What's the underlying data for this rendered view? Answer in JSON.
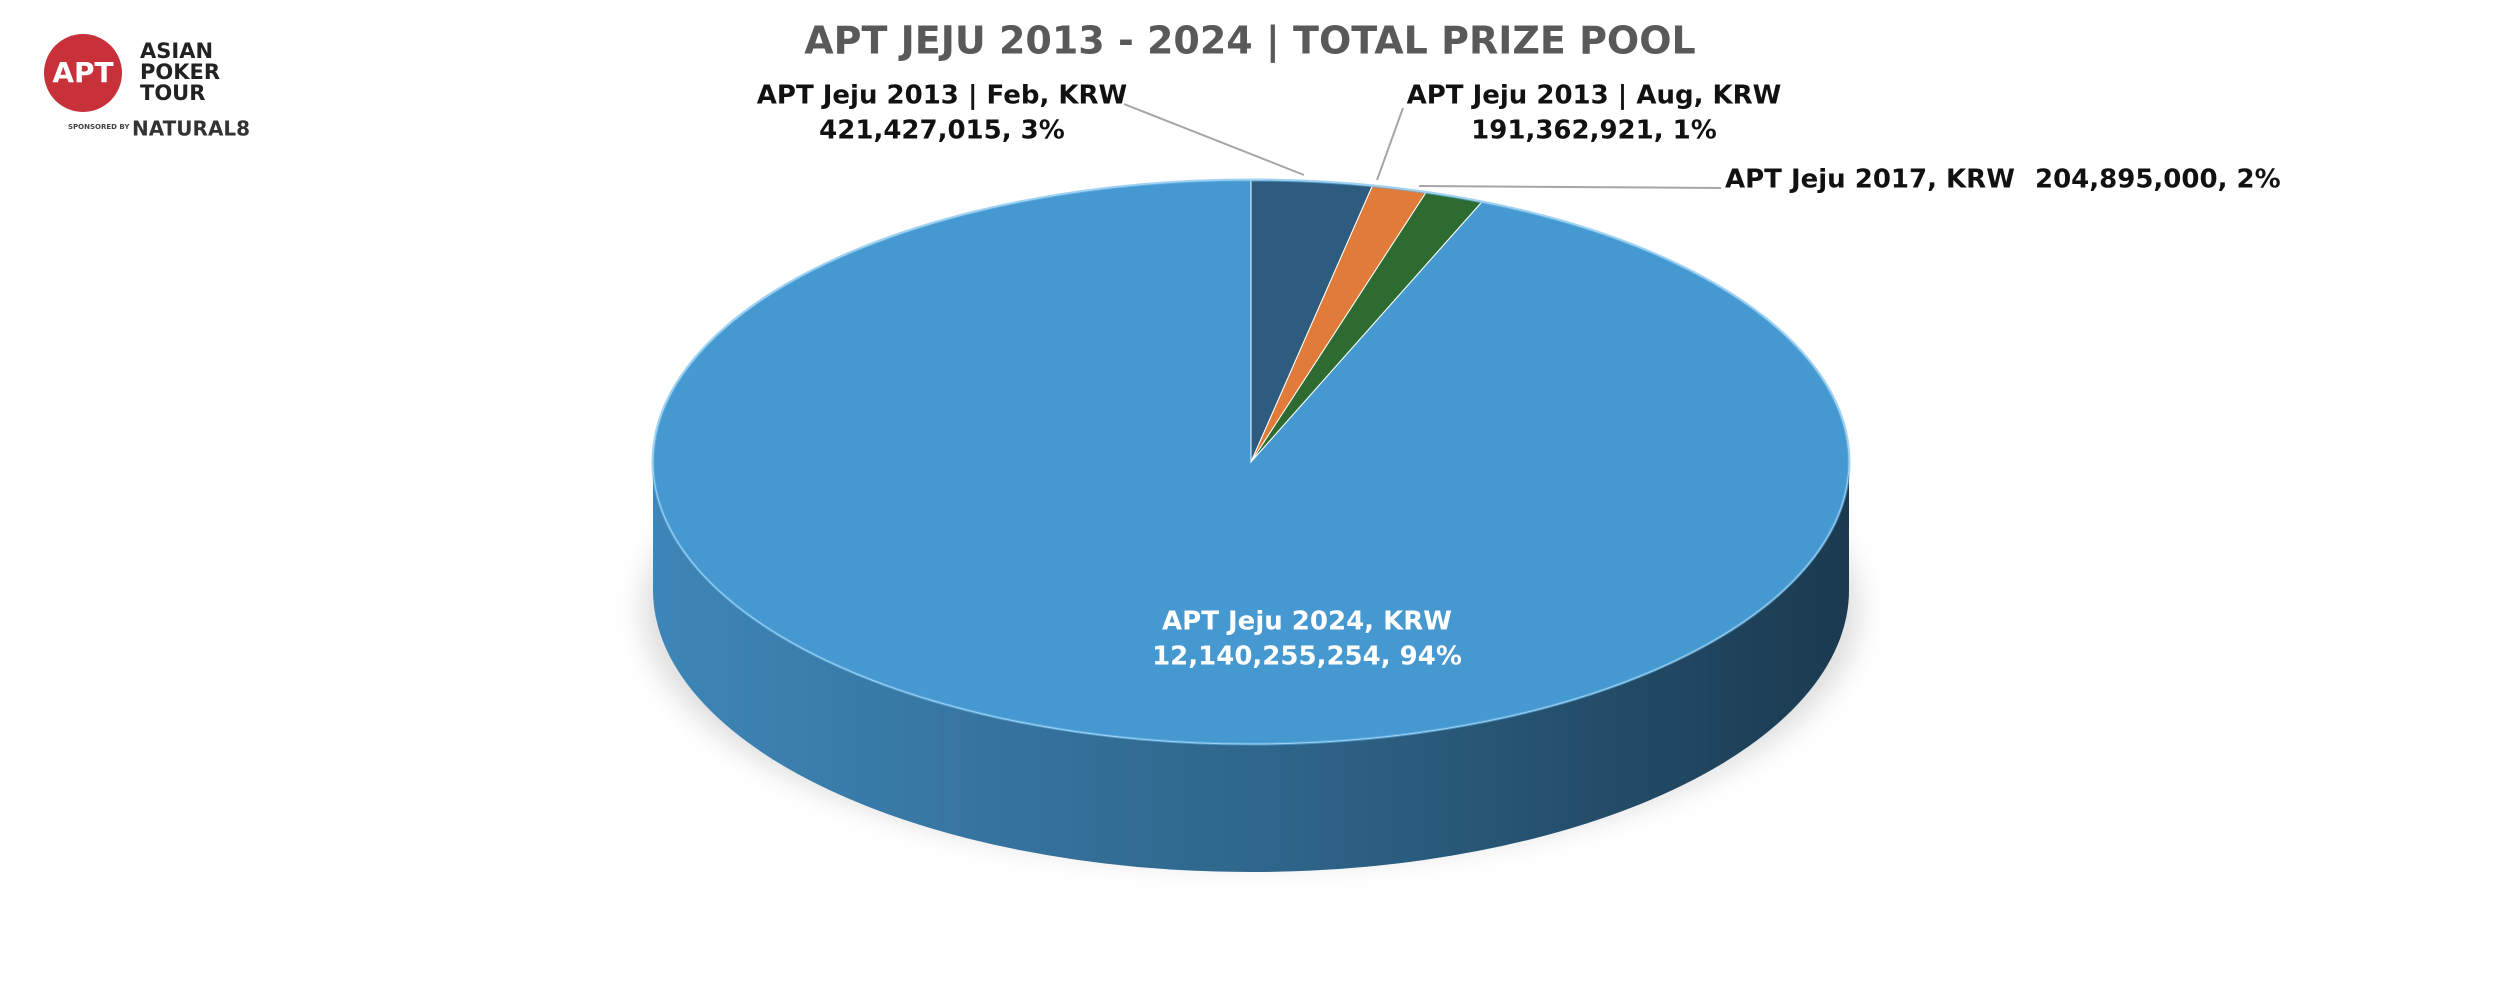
{
  "logo": {
    "badge": "APT",
    "lines": [
      "ASIAN",
      "POKER",
      "TOUR"
    ],
    "sponsor": "SPONSORED BY",
    "brand": "NATURAL8"
  },
  "chart_data": {
    "type": "pie3d",
    "title": "APT JEJU 2013 - 2024 | TOTAL PRIZE POOL",
    "categories": [
      "APT Jeju 2013 | Feb, KRW",
      "APT Jeju 2013 | Aug, KRW",
      "APT Jeju 2017, KRW",
      "APT Jeju 2024, KRW"
    ],
    "values": [
      421427015,
      191362921,
      204895000,
      12140255254
    ],
    "value_labels": [
      "421,427,015, 3%",
      "191,362,921, 1%",
      "204,895,000, 2%",
      "12,140,255,254, 94%"
    ],
    "colors": [
      "#2e5c7e",
      "#e07b39",
      "#2e6b30",
      "#4698d0"
    ]
  }
}
